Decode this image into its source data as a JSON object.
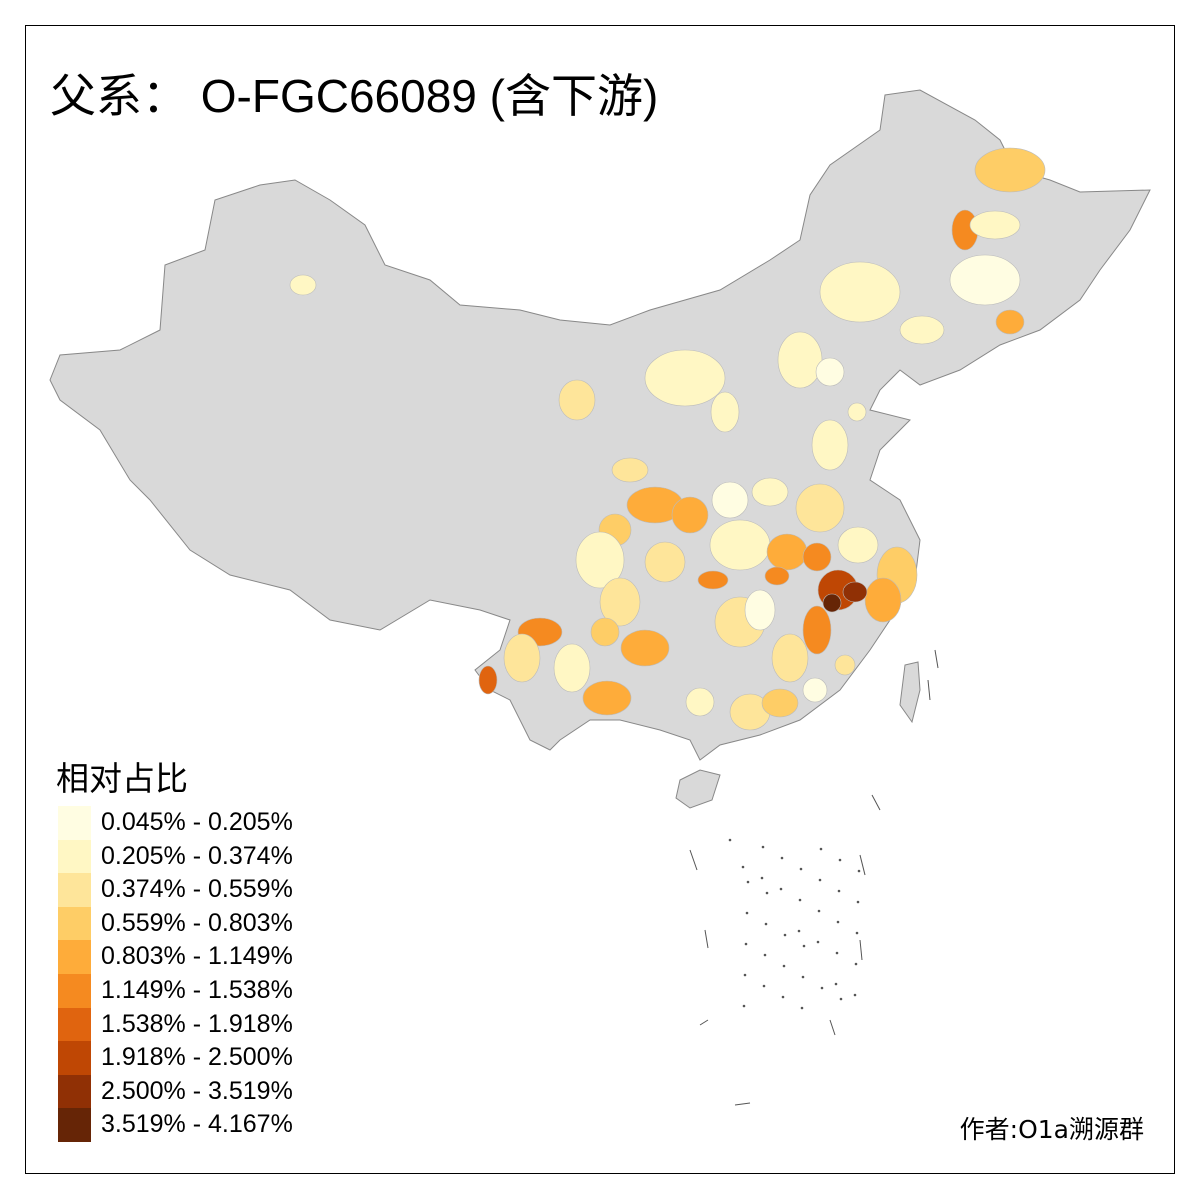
{
  "title": "父系： O-FGC66089 (含下游)",
  "legend": {
    "title": "相对占比",
    "classes": [
      {
        "label": "0.045% - 0.205%",
        "color": "#fffde2"
      },
      {
        "label": "0.205% - 0.374%",
        "color": "#fff7c4"
      },
      {
        "label": "0.374% - 0.559%",
        "color": "#fee59a"
      },
      {
        "label": "0.559% - 0.803%",
        "color": "#fecd66"
      },
      {
        "label": "0.803% - 1.149%",
        "color": "#feac3a"
      },
      {
        "label": "1.149% - 1.538%",
        "color": "#f58a20"
      },
      {
        "label": "1.538% - 1.918%",
        "color": "#e0640f"
      },
      {
        "label": "1.918% - 2.500%",
        "color": "#bf4704"
      },
      {
        "label": "2.500% - 3.519%",
        "color": "#903005"
      },
      {
        "label": "3.519% - 4.167%",
        "color": "#662506"
      }
    ]
  },
  "no_data_color": "#d9d9d9",
  "author": "作者:O1a溯源群"
}
